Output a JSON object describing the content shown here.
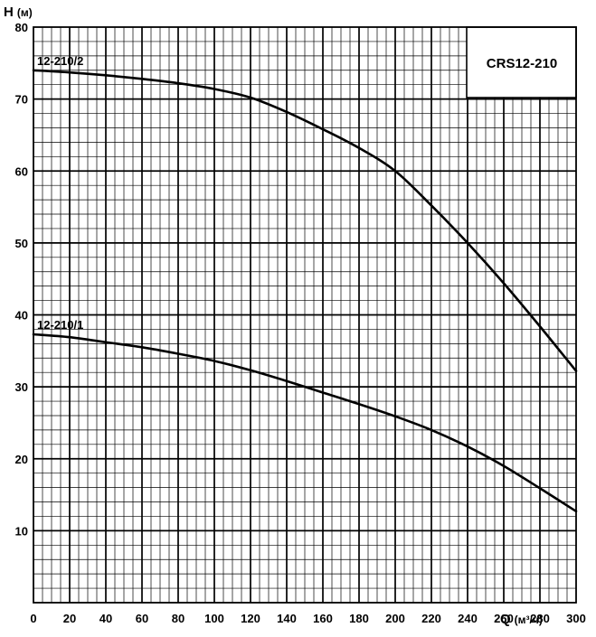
{
  "chart_data": {
    "type": "line",
    "title": "CRS12-210",
    "ylabel_main": "H",
    "ylabel_unit": "(м)",
    "xlabel_main": "Q",
    "xlabel_unit": "(м³/ч)",
    "xlim": [
      0,
      300
    ],
    "ylim": [
      0,
      80
    ],
    "x_ticks": [
      0,
      20,
      40,
      60,
      80,
      100,
      120,
      140,
      160,
      180,
      200,
      220,
      240,
      260,
      280,
      300
    ],
    "y_ticks": [
      10,
      20,
      30,
      40,
      50,
      60,
      70,
      80
    ],
    "x_major_step": 20,
    "x_minor_step": 5,
    "y_major_step": 10,
    "y_minor_step": 2,
    "grid": true,
    "series": [
      {
        "name": "12-210/2",
        "x": [
          0,
          20,
          40,
          60,
          80,
          100,
          120,
          140,
          160,
          180,
          200,
          220,
          240,
          260,
          280,
          300
        ],
        "y": [
          74,
          73.7,
          73.3,
          72.8,
          72.2,
          71.4,
          70.2,
          68.2,
          65.8,
          63.2,
          60,
          55.2,
          50,
          44.4,
          38.4,
          32.2
        ]
      },
      {
        "name": "12-210/1",
        "x": [
          0,
          20,
          40,
          60,
          80,
          100,
          120,
          140,
          160,
          180,
          200,
          220,
          240,
          260,
          280,
          300
        ],
        "y": [
          37.3,
          36.9,
          36.2,
          35.5,
          34.6,
          33.6,
          32.3,
          30.8,
          29.2,
          27.6,
          25.9,
          24,
          21.7,
          19,
          15.9,
          12.7
        ]
      }
    ]
  }
}
